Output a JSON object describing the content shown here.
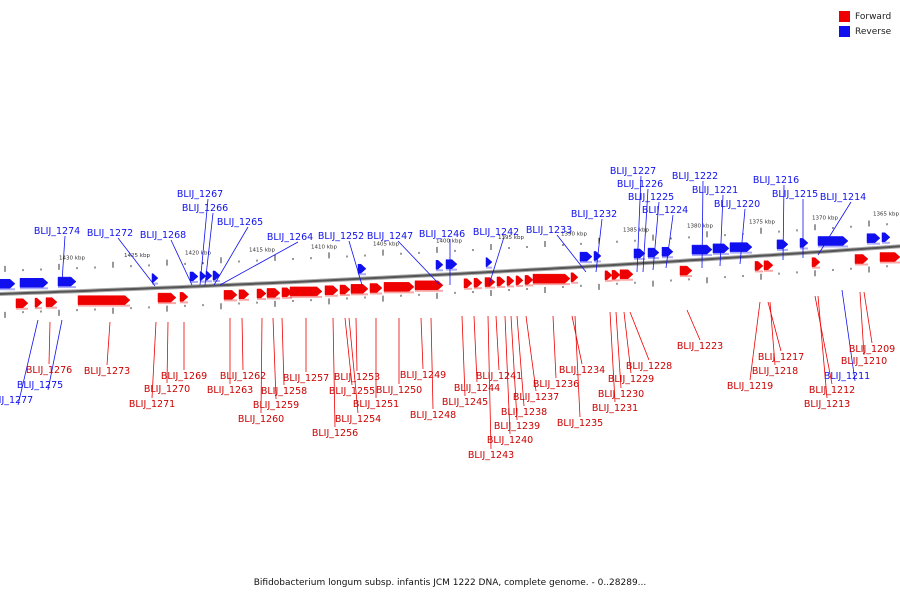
{
  "legend": {
    "forward_label": "Forward",
    "reverse_label": "Reverse",
    "forward_color": "#ee0000",
    "reverse_color": "#1010ee"
  },
  "caption": "Bifidobacterium longum subsp. infantis JCM 1222 DNA, complete genome. - 0..28289...",
  "scale_labels": [
    "1430 kbp",
    "1425 kbp",
    "1420 kbp",
    "1415 kbp",
    "1410 kbp",
    "1405 kbp",
    "1400 kbp",
    "1395 kbp",
    "1390 kbp",
    "1385 kbp",
    "1380 kbp",
    "1375 kbp",
    "1370 kbp",
    "1365 kbp"
  ],
  "reverse_genes": [
    "BLIJ_1277",
    "BLIJ_1275",
    "BLIJ_1274",
    "BLIJ_1272",
    "BLIJ_1268",
    "BLIJ_1267",
    "BLIJ_1266",
    "BLIJ_1265",
    "BLIJ_1264",
    "BLIJ_1252",
    "BLIJ_1247",
    "BLIJ_1246",
    "BLIJ_1242",
    "BLIJ_1233",
    "BLIJ_1232",
    "BLIJ_1227",
    "BLIJ_1226",
    "BLIJ_1225",
    "BLIJ_1224",
    "BLIJ_1222",
    "BLIJ_1221",
    "BLIJ_1220",
    "BLIJ_1216",
    "BLIJ_1215",
    "BLIJ_1214",
    "BLIJ_1211"
  ],
  "forward_genes": [
    "BLIJ_1276",
    "BLIJ_1273",
    "BLIJ_1271",
    "BLIJ_1270",
    "BLIJ_1269",
    "BLIJ_1263",
    "BLIJ_1262",
    "BLIJ_1260",
    "BLIJ_1259",
    "BLIJ_1258",
    "BLIJ_1257",
    "BLIJ_1256",
    "BLIJ_1255",
    "BLIJ_1254",
    "BLIJ_1253",
    "BLIJ_1251",
    "BLIJ_1250",
    "BLIJ_1249",
    "BLIJ_1248",
    "BLIJ_1245",
    "BLIJ_1244",
    "BLIJ_1243",
    "BLIJ_1241",
    "BLIJ_1240",
    "BLIJ_1239",
    "BLIJ_1238",
    "BLIJ_1237",
    "BLIJ_1236",
    "BLIJ_1235",
    "BLIJ_1234",
    "BLIJ_1231",
    "BLIJ_1230",
    "BLIJ_1229",
    "BLIJ_1228",
    "BLIJ_1223",
    "BLIJ_1219",
    "BLIJ_1218",
    "BLIJ_1217",
    "BLIJ_1213",
    "BLIJ_1212",
    "BLIJ_1210",
    "BLIJ_1209"
  ]
}
